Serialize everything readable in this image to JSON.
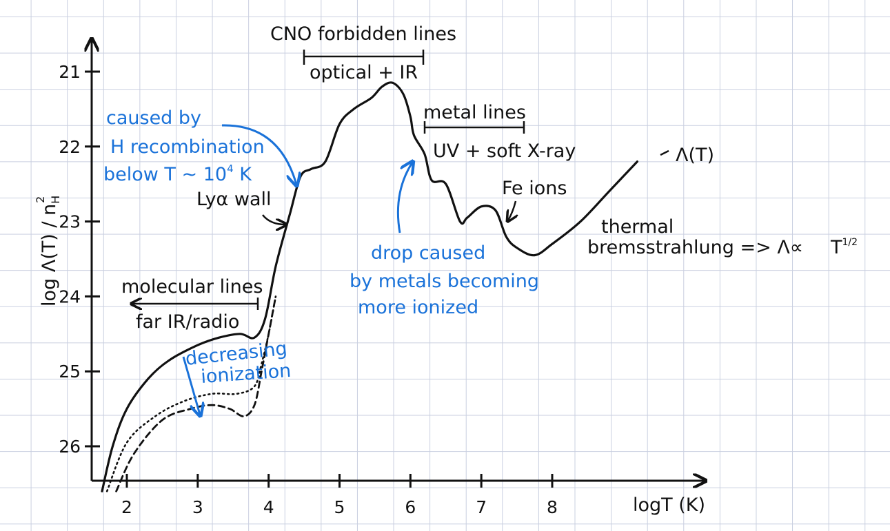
{
  "chart_data": {
    "type": "line",
    "xlabel": "logT (K)",
    "ylabel": "log Λ(T) / n",
    "ylabel_sup": "2",
    "ylabel_sub": "H",
    "x_ticks": [
      "2",
      "3",
      "4",
      "5",
      "6",
      "7",
      "8"
    ],
    "y_ticks": [
      "21",
      "22",
      "23",
      "24",
      "25",
      "26"
    ],
    "xlim": [
      1.5,
      9.2
    ],
    "ylim": [
      26.6,
      20.5
    ],
    "series": [
      {
        "name": "Λ(T)",
        "style": "solid",
        "x": [
          1.65,
          1.8,
          2.0,
          2.3,
          2.6,
          3.0,
          3.3,
          3.6,
          3.8,
          3.95,
          4.1,
          4.3,
          4.45,
          4.6,
          4.8,
          5.0,
          5.2,
          5.45,
          5.6,
          5.75,
          5.9,
          6.0,
          6.05,
          6.2,
          6.3,
          6.5,
          6.7,
          6.8,
          7.0,
          7.2,
          7.35,
          7.5,
          7.75,
          8.0,
          8.4,
          8.8,
          9.2
        ],
        "y": [
          26.6,
          26.0,
          25.5,
          25.1,
          24.85,
          24.65,
          24.55,
          24.5,
          24.55,
          24.3,
          23.6,
          22.9,
          22.4,
          22.3,
          22.2,
          21.7,
          21.5,
          21.35,
          21.2,
          21.15,
          21.3,
          21.6,
          21.85,
          22.1,
          22.45,
          22.5,
          23.0,
          22.95,
          22.8,
          22.85,
          23.2,
          23.35,
          23.45,
          23.3,
          23.0,
          22.6,
          22.2
        ]
      },
      {
        "name": "",
        "style": "dotted",
        "x": [
          1.72,
          2.0,
          2.4,
          2.8,
          3.2,
          3.55,
          3.8,
          3.9,
          4.0,
          4.1
        ],
        "y": [
          26.6,
          25.95,
          25.6,
          25.4,
          25.3,
          25.3,
          25.2,
          24.9,
          24.5,
          24.0
        ]
      },
      {
        "name": "",
        "style": "dashed",
        "x": [
          1.85,
          2.1,
          2.5,
          2.9,
          3.2,
          3.45,
          3.65,
          3.8,
          3.9,
          4.0,
          4.1
        ],
        "y": [
          26.6,
          26.1,
          25.65,
          25.5,
          25.45,
          25.5,
          25.6,
          25.45,
          25.0,
          24.5,
          24.0
        ]
      }
    ],
    "annotations": {
      "curve_label": "Λ(T)",
      "cno_title": "CNO forbidden lines",
      "cno_band": "optical + IR",
      "metal_title": "metal lines",
      "metal_band": "UV + soft X-ray",
      "fe_ions": "Fe ions",
      "thermal_1": "thermal",
      "thermal_2": "bremsstrahlung => Λ∝",
      "thermal_3": "T",
      "thermal_exp": "1/2",
      "molecular_title": "molecular lines",
      "molecular_band": "far IR/radio",
      "lya_wall": "Lyα wall",
      "h_recomb_1": "caused by",
      "h_recomb_2": "H recombination",
      "h_recomb_3": "below T ~ 10",
      "h_recomb_exp": "4",
      "h_recomb_unit": " K",
      "drop_1": "drop caused",
      "drop_2": "by metals becoming",
      "drop_3": "more ionized",
      "decreasing_1": "decreasing",
      "decreasing_2": "ionization"
    },
    "colors": {
      "ink": "#111111",
      "blue": "#1a72d9",
      "grid": "#c9cfe0"
    },
    "grid": true
  }
}
